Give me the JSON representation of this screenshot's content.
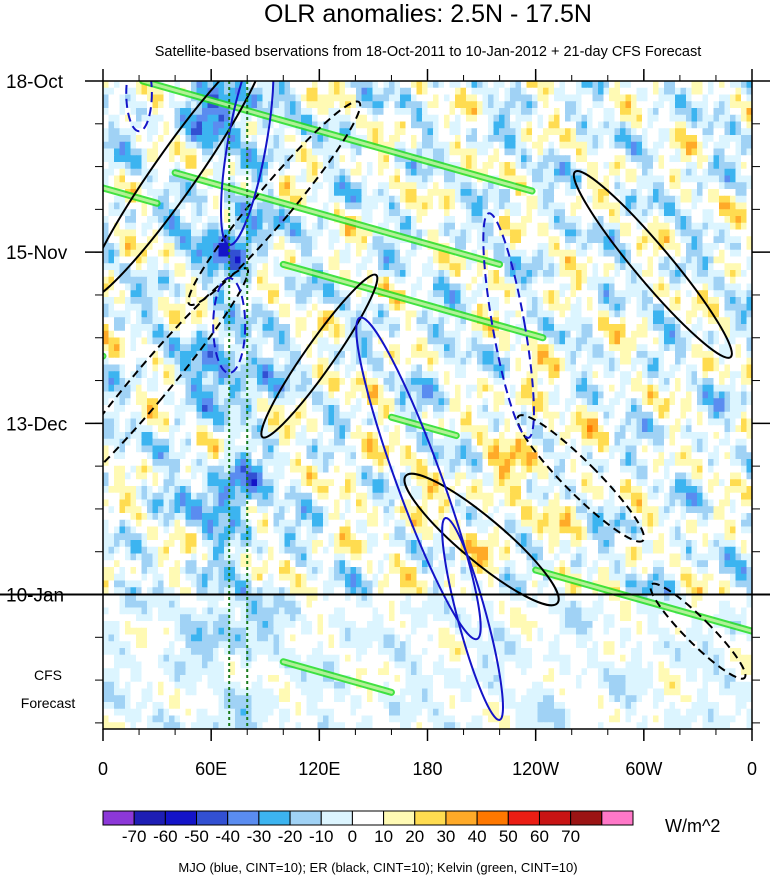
{
  "chart_data": {
    "type": "heatmap",
    "title": "OLR anomalies: 2.5N - 17.5N",
    "subtitle": "Satellite-based bservations from 18-Oct-2011 to 10-Jan-2012 + 21-day CFS Forecast",
    "x_ticks": [
      "0",
      "60E",
      "120E",
      "180",
      "120W",
      "60W",
      "0"
    ],
    "x_range_deg_east": [
      0,
      360
    ],
    "y_ticks": [
      "18-Oct",
      "15-Nov",
      "13-Dec",
      "10-Jan"
    ],
    "y_range_days": [
      0,
      106
    ],
    "y_tick_days": [
      0,
      28,
      56,
      84
    ],
    "observation_end_day": 84,
    "forecast_label": [
      "CFS",
      "Forecast"
    ],
    "colorbar_levels": [
      "-70",
      "-60",
      "-50",
      "-40",
      "-30",
      "-20",
      "-10",
      "0",
      "10",
      "20",
      "30",
      "40",
      "50",
      "60",
      "70"
    ],
    "colorbar_colors": [
      "#8c38d8",
      "#1e1eb4",
      "#1414c8",
      "#3250d2",
      "#5a8cf0",
      "#3cb4f0",
      "#a0d2f5",
      "#dcf5ff",
      "#ffffff",
      "#fffab4",
      "#ffdc50",
      "#ffaa28",
      "#ff7800",
      "#eb1e14",
      "#c81414",
      "#9b1414",
      "#ff78c8"
    ],
    "units": "W/m^2",
    "contour_legend": "MJO (blue, CINT=10); ER (black, CINT=10); Kelvin (green, CINT=10)",
    "contour_colors": {
      "mjo": "#1414c8",
      "er": "#000000",
      "kelvin": "#22dd22"
    },
    "reference_lines_lon": [
      70,
      80
    ],
    "reference_line_color": "#1a7a1a"
  }
}
